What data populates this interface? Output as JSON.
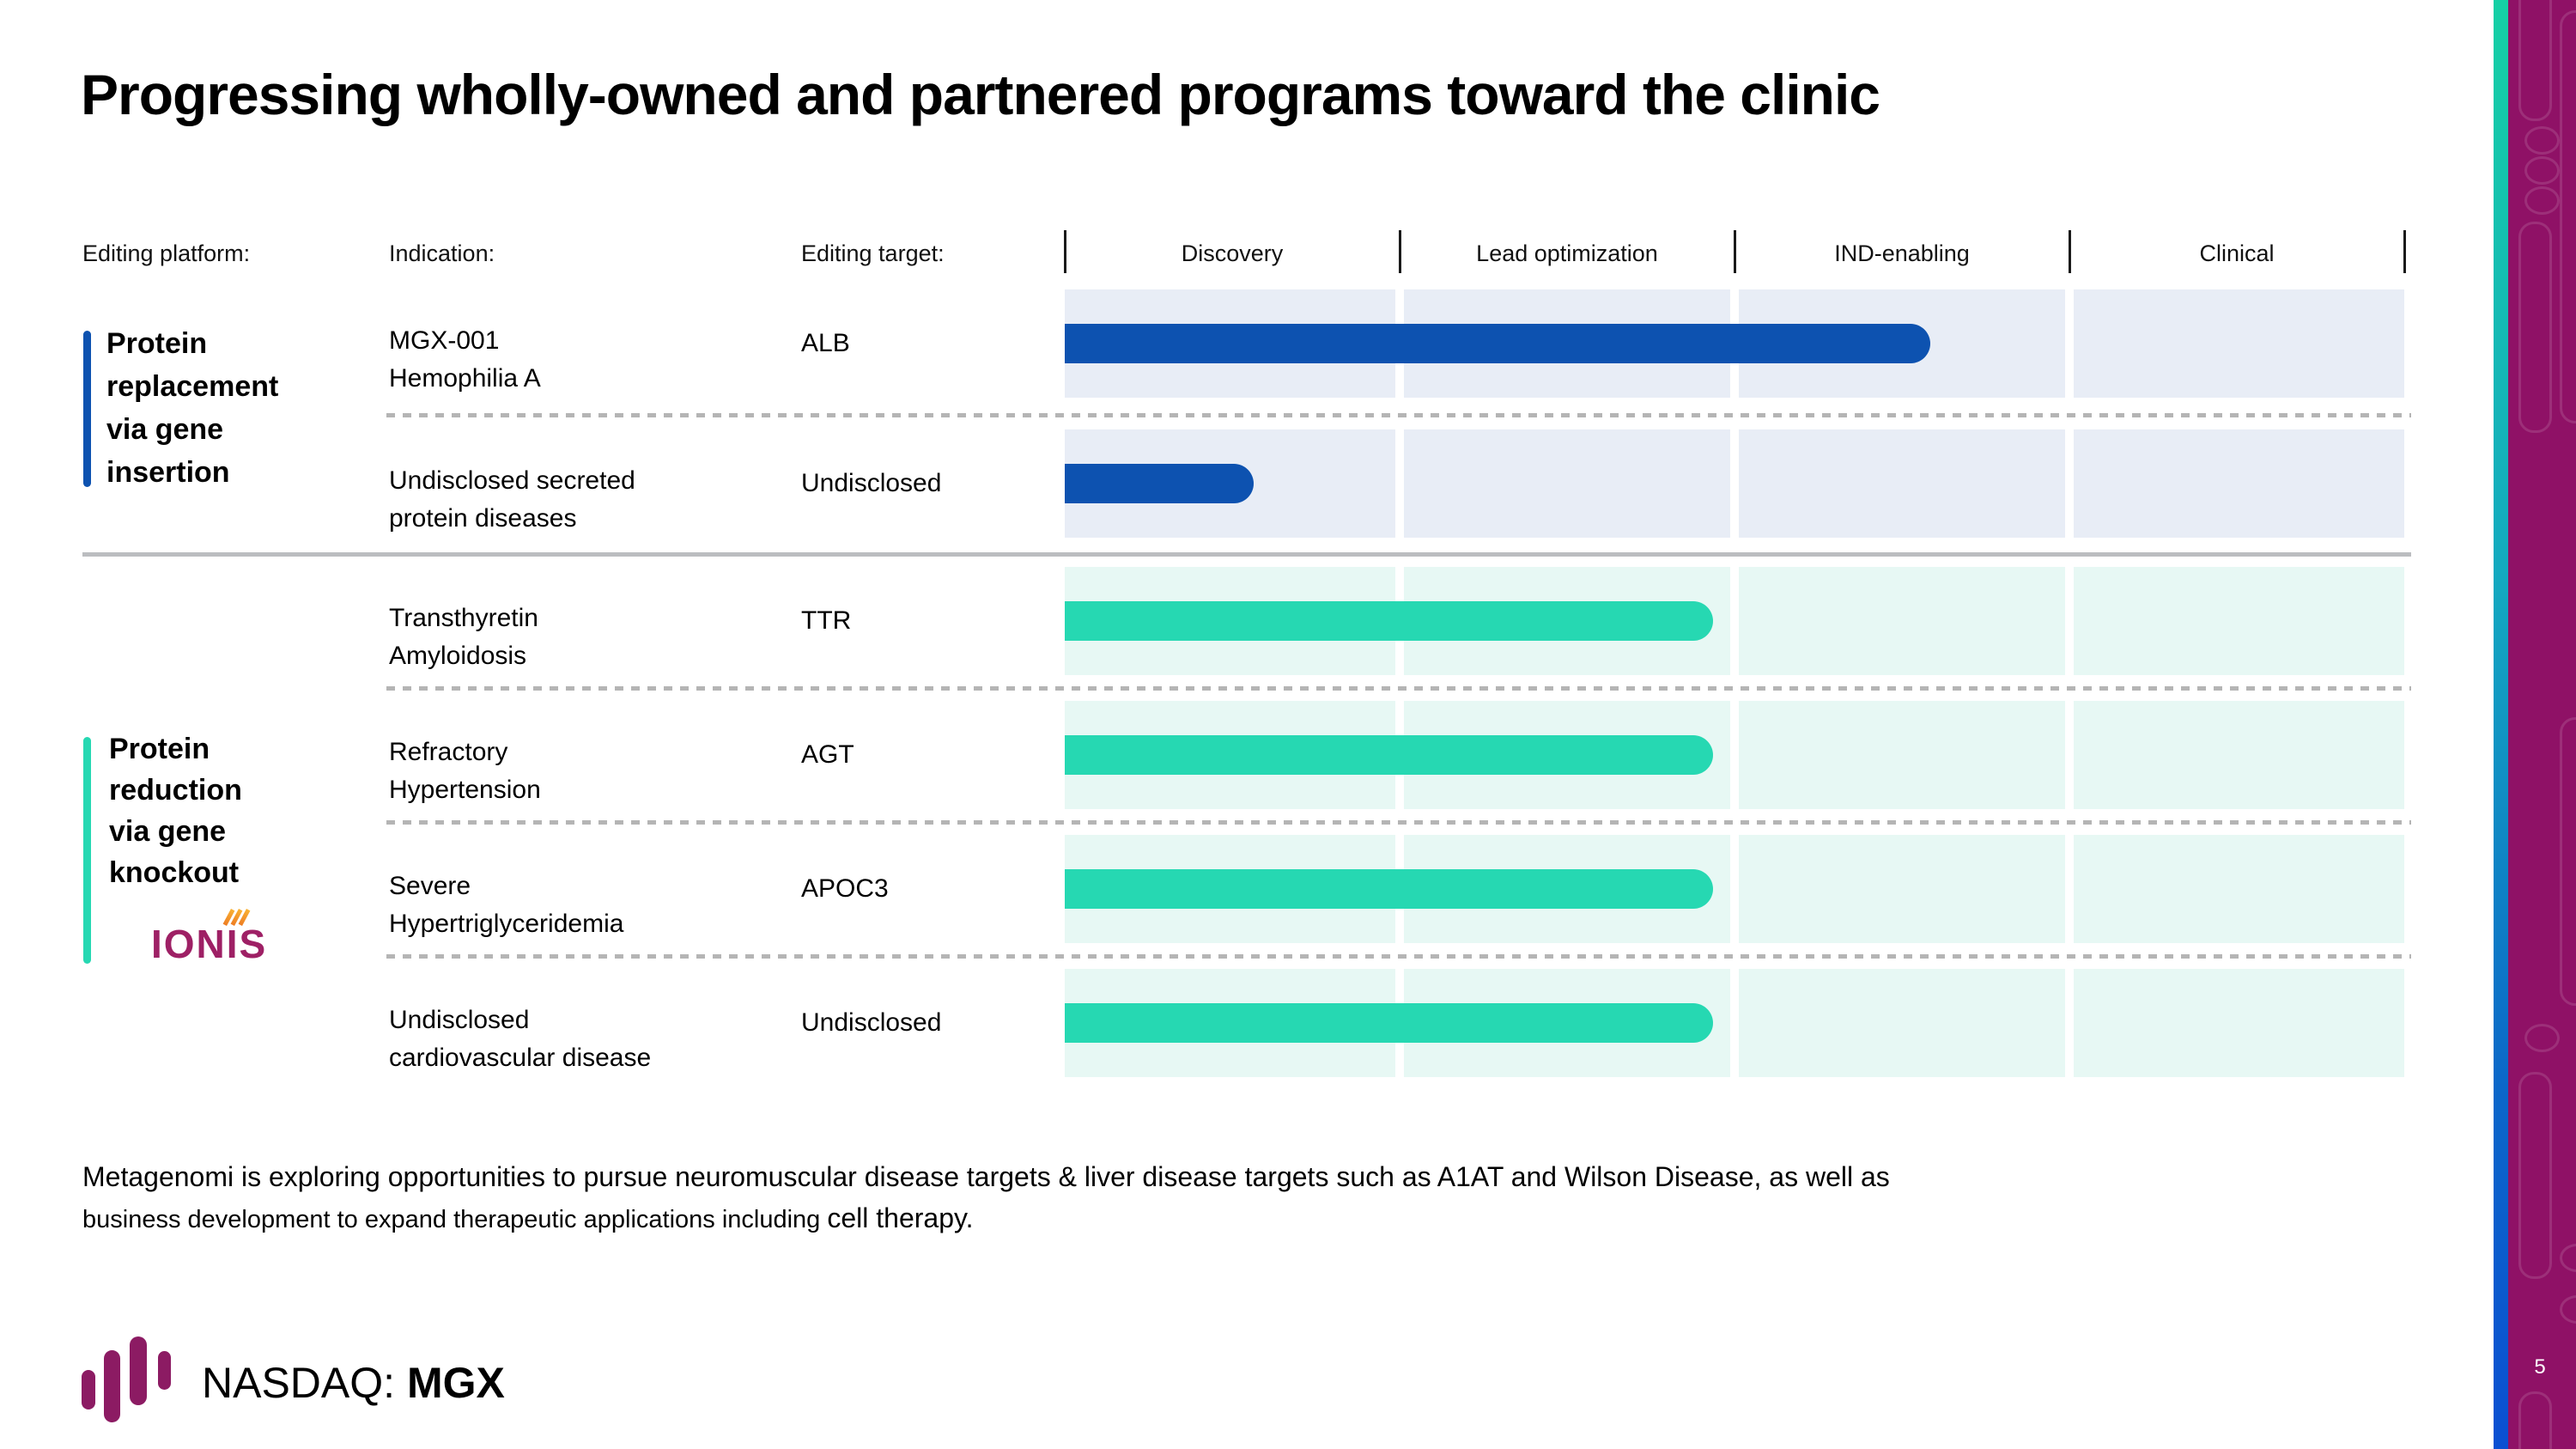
{
  "slide": {
    "title": "Progressing wholly-owned and partnered programs toward the clinic",
    "page_number": "5",
    "footer_note_line1": "Metagenomi is exploring opportunities to pursue neuromuscular disease targets & liver disease targets such as A1AT and Wilson Disease, as well as",
    "footer_note_line2a": "business development to expand therapeutic applications including",
    "footer_note_line2b": "cell therapy.",
    "ticker_label": "NASDAQ:",
    "ticker_symbol": "MGX"
  },
  "table": {
    "col_headers": {
      "platform": "Editing platform:",
      "indication": "Indication:",
      "target": "Editing target:"
    },
    "stages": [
      "Discovery",
      "Lead optimization",
      "IND-enabling",
      "Clinical"
    ],
    "groups": [
      {
        "label_lines": [
          "Protein",
          "replacement",
          "via gene",
          "insertion"
        ],
        "partner_logo": ""
      },
      {
        "label_lines": [
          "Protein",
          "reduction",
          "via gene",
          "knockout"
        ],
        "partner_logo": "IONIS"
      }
    ],
    "rows": [
      {
        "indication_lines": [
          "MGX-001",
          "Hemophilia A"
        ],
        "target": "ALB",
        "theme": "blue",
        "bar_pct": 64.6
      },
      {
        "indication_lines": [
          "Undisclosed secreted",
          "protein diseases"
        ],
        "target": "Undisclosed",
        "theme": "blue",
        "bar_pct": 14.1
      },
      {
        "indication_lines": [
          "Transthyretin",
          "Amyloidosis"
        ],
        "target": "TTR",
        "theme": "teal",
        "bar_pct": 48.4
      },
      {
        "indication_lines": [
          "Refractory",
          "Hypertension"
        ],
        "target": "AGT",
        "theme": "teal",
        "bar_pct": 48.4
      },
      {
        "indication_lines": [
          "Severe",
          "Hypertriglyceridemia"
        ],
        "target": "APOC3",
        "theme": "teal",
        "bar_pct": 48.4
      },
      {
        "indication_lines": [
          "Undisclosed",
          "cardiovascular disease"
        ],
        "target": "Undisclosed",
        "theme": "teal",
        "bar_pct": 48.4
      }
    ]
  },
  "chart_data": {
    "type": "bar",
    "orientation": "horizontal",
    "title": "Progressing wholly-owned and partnered programs toward the clinic",
    "stage_axis": [
      "Discovery",
      "Lead optimization",
      "IND-enabling",
      "Clinical"
    ],
    "xlim_stage_units": [
      0,
      4
    ],
    "categories": [
      "MGX-001 Hemophilia A (ALB)",
      "Undisclosed secreted protein diseases (Undisclosed)",
      "Transthyretin Amyloidosis (TTR)",
      "Refractory Hypertension (AGT)",
      "Severe Hypertriglyceridemia (APOC3)",
      "Undisclosed cardiovascular disease (Undisclosed)"
    ],
    "values_stage_units": [
      2.58,
      0.56,
      1.94,
      1.94,
      1.94,
      1.94
    ],
    "series_group": [
      "Protein replacement via gene insertion",
      "Protein replacement via gene insertion",
      "Protein reduction via gene knockout",
      "Protein reduction via gene knockout",
      "Protein reduction via gene knockout",
      "Protein reduction via gene knockout"
    ],
    "legend_position": "none",
    "grid": "stage columns with white gutters"
  },
  "colors": {
    "blue": "#0d52b0",
    "teal": "#26d8b2",
    "lane-blue": "#e8edf6",
    "lane-teal": "#e7f8f4",
    "magenta": "#8f1166",
    "brand": "#8c1b63",
    "ionis": "#9e2065"
  }
}
